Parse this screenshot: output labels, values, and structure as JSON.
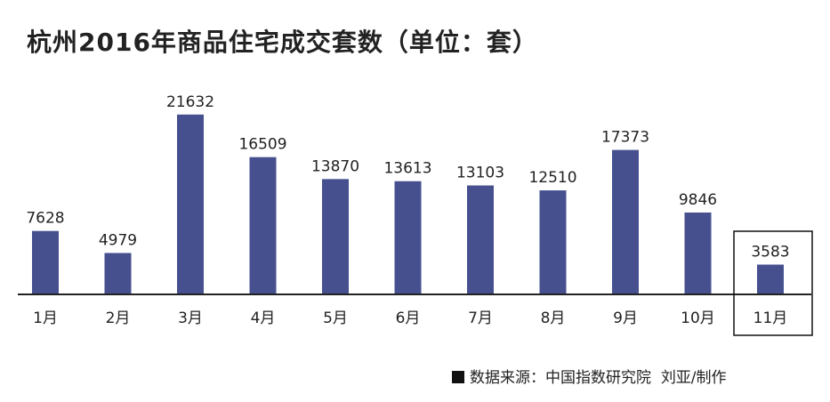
{
  "chart_data": {
    "type": "bar",
    "title": "杭州2016年商品住宅成交套数（单位：套）",
    "categories": [
      "1月",
      "2月",
      "3月",
      "4月",
      "5月",
      "6月",
      "7月",
      "8月",
      "9月",
      "10月",
      "11月"
    ],
    "values": [
      7628,
      4979,
      21632,
      16509,
      13870,
      13613,
      13103,
      12510,
      17373,
      9846,
      3583
    ],
    "highlighted_category": "11月",
    "ylim": [
      0,
      23000
    ],
    "grid": false,
    "bar_color": "#46508f"
  },
  "footer": {
    "source": "数据来源：中国指数研究院",
    "author": "刘亚/制作"
  }
}
